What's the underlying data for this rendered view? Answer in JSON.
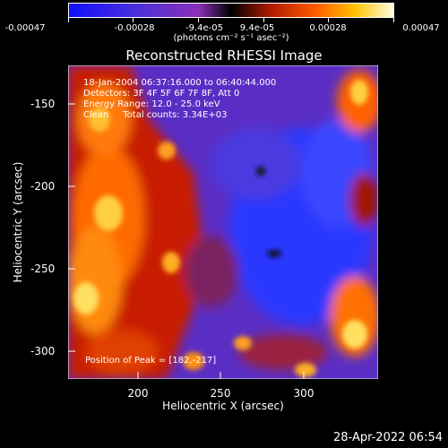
{
  "chart_data": {
    "type": "heatmap",
    "title": "Reconstructed RHESSI Image",
    "xlabel": "Heliocentric X (arcsec)",
    "ylabel": "Heliocentric Y (arcsec)",
    "xlim": [
      158,
      345
    ],
    "ylim": [
      -320,
      -131
    ],
    "x_ticks": [
      200,
      250,
      300
    ],
    "y_ticks": [
      -150,
      -200,
      -250,
      -300
    ],
    "colorbar": {
      "ticks": [
        "-0.00047",
        "-0.00028",
        "-9.4e-05",
        "9.4e-05",
        "0.00028",
        "0.00047"
      ],
      "unit": "(photons cm⁻² s⁻¹ asec⁻²)",
      "range": [
        -0.00047,
        0.00047
      ]
    },
    "annotations": [
      "18-Jan-2004 06:37:16.000 to 06:40:44.000",
      "Detectors: 3F 4F 5F 6F 7F 8F, Att 0",
      "Energy Range: 12.0 - 25.0 keV",
      "Clean     Total counts: 3.34E+03"
    ],
    "peak_label": "Position of Peak = [182,-217]",
    "peak_position": [
      182,
      -217
    ]
  },
  "footer": {
    "timestamp": "28-Apr-2022 06:54"
  }
}
